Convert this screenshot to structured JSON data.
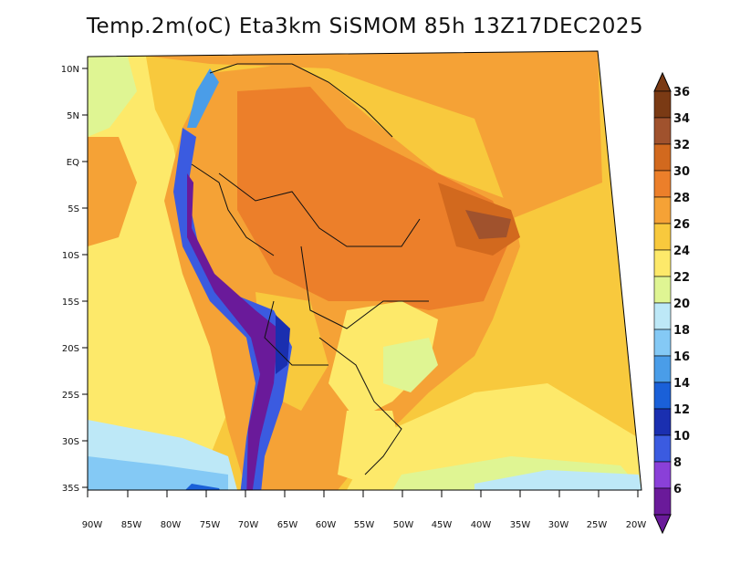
{
  "title": "Temp.2m(oC) Eta3km SiSMOM 85h 13Z17DEC2025",
  "axes": {
    "lon_labels": [
      "90W",
      "85W",
      "80W",
      "75W",
      "70W",
      "65W",
      "60W",
      "55W",
      "50W",
      "45W",
      "40W",
      "35W",
      "30W",
      "25W",
      "20W"
    ],
    "lat_labels": [
      "10N",
      "5N",
      "EQ",
      "5S",
      "10S",
      "15S",
      "20S",
      "25S",
      "30S",
      "35S"
    ]
  },
  "colorbar": {
    "labels": [
      "36",
      "34",
      "32",
      "30",
      "28",
      "26",
      "24",
      "22",
      "20",
      "18",
      "16",
      "14",
      "12",
      "10",
      "8",
      "6"
    ],
    "colors": [
      "#7a3a14",
      "#a0522d",
      "#d2691e",
      "#ec7f2a",
      "#f5a236",
      "#f8c93d",
      "#fde96a",
      "#dff593",
      "#bde8f7",
      "#84c9f5",
      "#4a9de8",
      "#1a60d8",
      "#1a2fb0",
      "#3b5be0",
      "#8a40d8",
      "#6a1a9a"
    ]
  }
}
